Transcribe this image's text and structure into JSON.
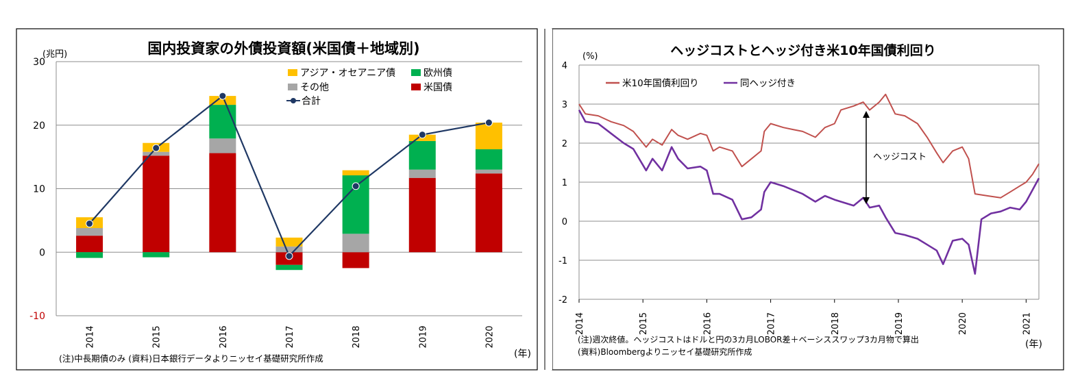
{
  "chart_data": [
    {
      "type": "bar",
      "stacked": true,
      "title": "国内投資家の外債投資額(米国債＋地域別)",
      "unit_label": "(兆円)",
      "x_unit_label": "(年)",
      "note": "(注)中長期債のみ (資料)日本銀行データよりニッセイ基礎研究所作成",
      "categories": [
        "2014",
        "2015",
        "2016",
        "2017",
        "2018",
        "2019",
        "2020"
      ],
      "ylim": [
        -10,
        30
      ],
      "yticks": [
        "-10",
        "0",
        "10",
        "20",
        "30"
      ],
      "grid": true,
      "legend_position": "top-right",
      "series": [
        {
          "name": "米国債",
          "color": "#c00000",
          "values": [
            2.6,
            15.2,
            15.6,
            -2.0,
            -2.5,
            11.7,
            12.4
          ]
        },
        {
          "name": "その他",
          "color": "#a6a6a6",
          "values": [
            1.2,
            0.6,
            2.3,
            0.9,
            2.9,
            1.3,
            0.6
          ]
        },
        {
          "name": "欧州債",
          "color": "#00b050",
          "values": [
            -0.9,
            -0.8,
            5.3,
            -0.8,
            9.2,
            4.5,
            3.2
          ]
        },
        {
          "name": "アジア・オセアニア債",
          "color": "#ffc000",
          "values": [
            1.7,
            1.4,
            1.4,
            1.4,
            0.8,
            1.0,
            4.2
          ]
        }
      ],
      "total": {
        "name": "合計",
        "color": "#1f3864",
        "values": [
          4.5,
          16.4,
          24.6,
          -0.6,
          10.4,
          18.5,
          20.4
        ]
      }
    },
    {
      "type": "line",
      "title": "ヘッジコストとヘッジ付き米10年国債利回り",
      "unit_label": "(%)",
      "x_unit_label": "(年)",
      "note_lines": [
        "(注)週次終値。ヘッジコストはドルと円の3カ月LOBOR差＋ベーシススワップ3カ月物で算出",
        "(資料)Bloombergよりニッセイ基礎研究所作成"
      ],
      "annotation": "ヘッジコスト",
      "xlim": [
        2014.0,
        2021.2
      ],
      "xticks": [
        "2014",
        "2015",
        "2016",
        "2017",
        "2018",
        "2019",
        "2020",
        "2021"
      ],
      "ylim": [
        -2,
        4
      ],
      "yticks": [
        "-2",
        "-1",
        "0",
        "1",
        "2",
        "3",
        "4"
      ],
      "grid": true,
      "legend_position": "top-left",
      "series": [
        {
          "name": "米10年国債利回り",
          "color": "#c0504d",
          "points": [
            [
              2014.0,
              3.0
            ],
            [
              2014.1,
              2.75
            ],
            [
              2014.3,
              2.7
            ],
            [
              2014.5,
              2.55
            ],
            [
              2014.7,
              2.45
            ],
            [
              2014.85,
              2.3
            ],
            [
              2015.05,
              1.9
            ],
            [
              2015.15,
              2.1
            ],
            [
              2015.3,
              1.95
            ],
            [
              2015.45,
              2.35
            ],
            [
              2015.55,
              2.2
            ],
            [
              2015.7,
              2.1
            ],
            [
              2015.9,
              2.25
            ],
            [
              2016.0,
              2.2
            ],
            [
              2016.1,
              1.8
            ],
            [
              2016.2,
              1.9
            ],
            [
              2016.4,
              1.8
            ],
            [
              2016.55,
              1.4
            ],
            [
              2016.7,
              1.6
            ],
            [
              2016.85,
              1.8
            ],
            [
              2016.9,
              2.3
            ],
            [
              2017.0,
              2.5
            ],
            [
              2017.2,
              2.4
            ],
            [
              2017.35,
              2.35
            ],
            [
              2017.5,
              2.3
            ],
            [
              2017.7,
              2.15
            ],
            [
              2017.85,
              2.4
            ],
            [
              2018.0,
              2.5
            ],
            [
              2018.1,
              2.85
            ],
            [
              2018.3,
              2.95
            ],
            [
              2018.45,
              3.05
            ],
            [
              2018.55,
              2.85
            ],
            [
              2018.7,
              3.05
            ],
            [
              2018.8,
              3.25
            ],
            [
              2018.95,
              2.75
            ],
            [
              2019.1,
              2.7
            ],
            [
              2019.3,
              2.5
            ],
            [
              2019.45,
              2.15
            ],
            [
              2019.6,
              1.75
            ],
            [
              2019.7,
              1.5
            ],
            [
              2019.85,
              1.8
            ],
            [
              2020.0,
              1.9
            ],
            [
              2020.1,
              1.6
            ],
            [
              2020.2,
              0.7
            ],
            [
              2020.4,
              0.65
            ],
            [
              2020.6,
              0.6
            ],
            [
              2020.75,
              0.75
            ],
            [
              2020.9,
              0.9
            ],
            [
              2021.0,
              1.0
            ],
            [
              2021.1,
              1.2
            ],
            [
              2021.2,
              1.47
            ]
          ]
        },
        {
          "name": "同ヘッジ付き",
          "color": "#7030a0",
          "points": [
            [
              2014.0,
              2.85
            ],
            [
              2014.1,
              2.55
            ],
            [
              2014.3,
              2.5
            ],
            [
              2014.5,
              2.25
            ],
            [
              2014.7,
              2.0
            ],
            [
              2014.85,
              1.85
            ],
            [
              2015.05,
              1.3
            ],
            [
              2015.15,
              1.6
            ],
            [
              2015.3,
              1.3
            ],
            [
              2015.45,
              1.9
            ],
            [
              2015.55,
              1.6
            ],
            [
              2015.7,
              1.35
            ],
            [
              2015.9,
              1.4
            ],
            [
              2016.0,
              1.3
            ],
            [
              2016.1,
              0.7
            ],
            [
              2016.2,
              0.7
            ],
            [
              2016.4,
              0.55
            ],
            [
              2016.55,
              0.05
            ],
            [
              2016.7,
              0.1
            ],
            [
              2016.85,
              0.3
            ],
            [
              2016.9,
              0.75
            ],
            [
              2017.0,
              1.0
            ],
            [
              2017.2,
              0.9
            ],
            [
              2017.35,
              0.8
            ],
            [
              2017.5,
              0.7
            ],
            [
              2017.7,
              0.5
            ],
            [
              2017.85,
              0.65
            ],
            [
              2018.0,
              0.55
            ],
            [
              2018.1,
              0.5
            ],
            [
              2018.3,
              0.4
            ],
            [
              2018.45,
              0.6
            ],
            [
              2018.55,
              0.35
            ],
            [
              2018.7,
              0.4
            ],
            [
              2018.8,
              0.1
            ],
            [
              2018.95,
              -0.3
            ],
            [
              2019.1,
              -0.35
            ],
            [
              2019.3,
              -0.45
            ],
            [
              2019.45,
              -0.6
            ],
            [
              2019.6,
              -0.75
            ],
            [
              2019.7,
              -1.1
            ],
            [
              2019.85,
              -0.5
            ],
            [
              2020.0,
              -0.45
            ],
            [
              2020.1,
              -0.6
            ],
            [
              2020.2,
              -1.35
            ],
            [
              2020.3,
              0.05
            ],
            [
              2020.45,
              0.2
            ],
            [
              2020.6,
              0.25
            ],
            [
              2020.75,
              0.35
            ],
            [
              2020.9,
              0.3
            ],
            [
              2021.0,
              0.5
            ],
            [
              2021.1,
              0.8
            ],
            [
              2021.2,
              1.1
            ]
          ]
        }
      ]
    }
  ]
}
